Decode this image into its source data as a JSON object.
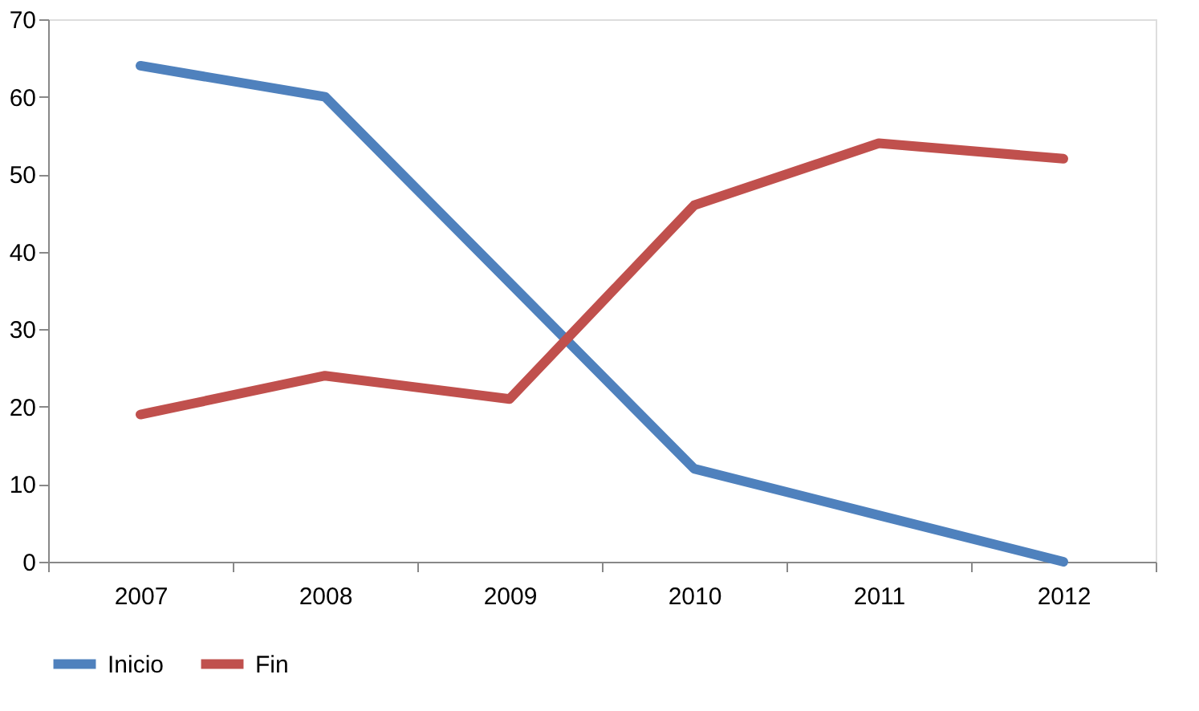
{
  "chart_data": {
    "type": "line",
    "categories": [
      "2007",
      "2008",
      "2009",
      "2010",
      "2011",
      "2012"
    ],
    "series": [
      {
        "name": "Inicio",
        "color": "#4f81bd",
        "values": [
          64,
          60,
          36,
          12,
          6,
          0
        ]
      },
      {
        "name": "Fin",
        "color": "#c0504d",
        "values": [
          19,
          24,
          21,
          46,
          54,
          52
        ]
      }
    ],
    "ylim": [
      0,
      70
    ],
    "yticks": [
      0,
      10,
      20,
      30,
      40,
      50,
      60,
      70
    ],
    "grid": false,
    "legend": "bottom",
    "marker": "none",
    "line_style": "solid"
  }
}
